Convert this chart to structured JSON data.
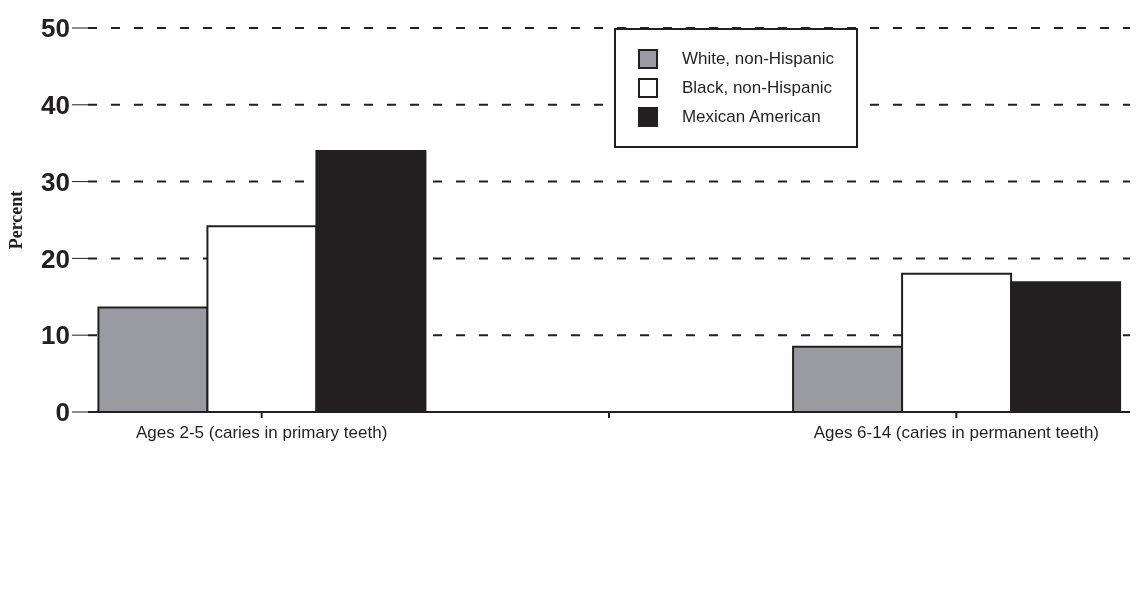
{
  "chart_data": {
    "type": "bar",
    "ylabel": "Percent",
    "categories": [
      "Ages 2-5 (caries in primary teeth)",
      null,
      "Ages 6-14 (caries in permanent teeth)"
    ],
    "series": [
      {
        "name": "White, non-Hispanic",
        "color": "#9a9ba0",
        "values": [
          13.6,
          null,
          8.5
        ]
      },
      {
        "name": "Black, non-Hispanic",
        "color": "#ffffff",
        "values": [
          24.2,
          null,
          18.0
        ]
      },
      {
        "name": "Mexican American",
        "color": "#231f20",
        "values": [
          34.0,
          null,
          16.9
        ]
      }
    ],
    "ylim": [
      0,
      50
    ],
    "yticks": [
      0,
      10,
      20,
      30,
      40,
      50
    ],
    "grid": "y",
    "legend": "top right"
  }
}
